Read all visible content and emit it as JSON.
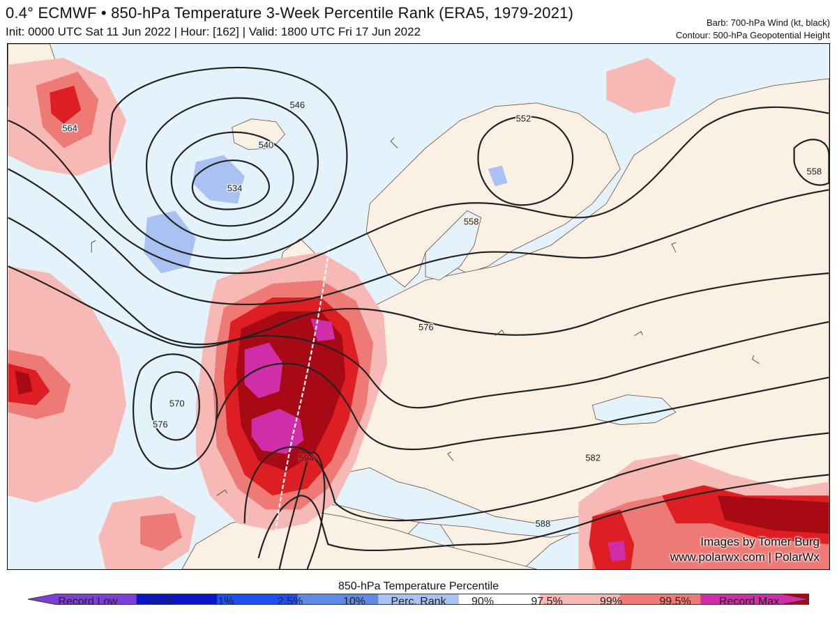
{
  "header": {
    "title": "0.4° ECMWF • 850-hPa Temperature 3-Week Percentile Rank (ERA5, 1979-2021)",
    "subtitle": "Init: 0000 UTC Sat 11 Jun 2022 | Hour: [162] | Valid: 1800 UTC Fri 17 Jun 2022",
    "barb_note": "Barb: 700-hPa Wind (kt, black)",
    "contour_note": "Contour: 500-hPa Geopotential Height"
  },
  "map": {
    "contour_labels": [
      "564",
      "546",
      "540",
      "534",
      "558",
      "552",
      "558",
      "570",
      "576",
      "576",
      "594",
      "582",
      "588"
    ],
    "colors": {
      "ocean_low": "#e4f3fb",
      "land_neutral": "#faf0e4",
      "pct_90": "#f6b9b5",
      "pct_975": "#ee7a76",
      "pct_99": "#dd1f23",
      "pct_995": "#a70a14",
      "record_max": "#cf2ea8",
      "pct_10": "#a9c2f2",
      "contour": "#222222"
    }
  },
  "credit": {
    "line1": "Images by Tomer Burg",
    "line2": "www.polarwx.com | PolarWx"
  },
  "legend": {
    "title": "850-hPa Temperature Percentile",
    "labels": [
      "Record Low",
      "0.5%",
      "1%",
      "2.5%",
      "10%",
      "Perc. Rank",
      "90%",
      "97.5%",
      "99%",
      "99.5%",
      "Record Max"
    ],
    "colors": [
      "#7b3fd6",
      "#0a14c8",
      "#1f4ff0",
      "#5f8be6",
      "#a9c2f2",
      "#ffffff",
      "#f6b9b5",
      "#ee7a76",
      "#dd1f23",
      "#a70a14",
      "#cf2ea8"
    ]
  }
}
